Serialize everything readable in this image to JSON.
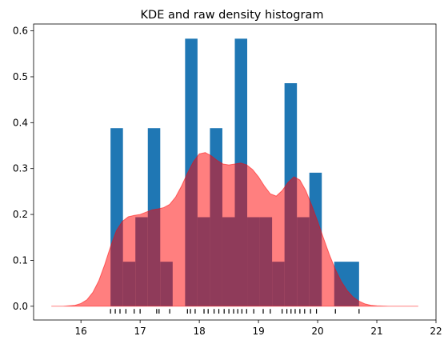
{
  "chart_data": {
    "type": "histogram+kde",
    "title": "KDE and raw density histogram",
    "xlabel": "",
    "ylabel": "",
    "xlim": [
      15.2,
      22.0
    ],
    "ylim": [
      -0.03,
      0.615
    ],
    "x_ticks": [
      16,
      17,
      18,
      19,
      20,
      21,
      22
    ],
    "y_ticks": [
      0.0,
      0.1,
      0.2,
      0.3,
      0.4,
      0.5,
      0.6
    ],
    "x_tick_labels": [
      "16",
      "17",
      "18",
      "19",
      "20",
      "21",
      "22"
    ],
    "y_tick_labels": [
      "0.0",
      "0.1",
      "0.2",
      "0.3",
      "0.4",
      "0.5",
      "0.6"
    ],
    "grid": false,
    "legend": "none",
    "histogram": {
      "color": "#1f77b4",
      "bins": [
        {
          "x0": 16.5,
          "x1": 16.71,
          "density": 0.388
        },
        {
          "x0": 16.71,
          "x1": 16.92,
          "density": 0.097
        },
        {
          "x0": 16.92,
          "x1": 17.13,
          "density": 0.194
        },
        {
          "x0": 17.13,
          "x1": 17.34,
          "density": 0.388
        },
        {
          "x0": 17.34,
          "x1": 17.55,
          "density": 0.097
        },
        {
          "x0": 17.55,
          "x1": 17.76,
          "density": 0.0
        },
        {
          "x0": 17.76,
          "x1": 17.97,
          "density": 0.583
        },
        {
          "x0": 17.97,
          "x1": 18.18,
          "density": 0.194
        },
        {
          "x0": 18.18,
          "x1": 18.39,
          "density": 0.388
        },
        {
          "x0": 18.39,
          "x1": 18.6,
          "density": 0.194
        },
        {
          "x0": 18.6,
          "x1": 18.81,
          "density": 0.583
        },
        {
          "x0": 18.81,
          "x1": 19.02,
          "density": 0.194
        },
        {
          "x0": 19.02,
          "x1": 19.23,
          "density": 0.194
        },
        {
          "x0": 19.23,
          "x1": 19.44,
          "density": 0.097
        },
        {
          "x0": 19.44,
          "x1": 19.65,
          "density": 0.486
        },
        {
          "x0": 19.65,
          "x1": 19.86,
          "density": 0.194
        },
        {
          "x0": 19.86,
          "x1": 20.07,
          "density": 0.291
        },
        {
          "x0": 20.07,
          "x1": 20.28,
          "density": 0.0
        },
        {
          "x0": 20.28,
          "x1": 20.7,
          "density": 0.097
        }
      ]
    },
    "kde": {
      "color": "#ff0000",
      "fill_alpha": 0.5,
      "x": [
        15.5,
        15.7,
        15.9,
        16.0,
        16.1,
        16.2,
        16.3,
        16.4,
        16.5,
        16.6,
        16.7,
        16.8,
        16.9,
        17.0,
        17.1,
        17.2,
        17.3,
        17.4,
        17.5,
        17.6,
        17.7,
        17.8,
        17.9,
        18.0,
        18.1,
        18.2,
        18.3,
        18.4,
        18.5,
        18.6,
        18.7,
        18.8,
        18.9,
        19.0,
        19.1,
        19.2,
        19.3,
        19.4,
        19.5,
        19.6,
        19.7,
        19.8,
        19.9,
        20.0,
        20.1,
        20.2,
        20.3,
        20.4,
        20.5,
        20.6,
        20.7,
        20.8,
        20.9,
        21.0,
        21.2,
        21.4,
        21.7
      ],
      "y": [
        0.0,
        0.0,
        0.002,
        0.006,
        0.014,
        0.03,
        0.055,
        0.09,
        0.13,
        0.165,
        0.185,
        0.195,
        0.198,
        0.2,
        0.205,
        0.21,
        0.212,
        0.215,
        0.222,
        0.238,
        0.262,
        0.29,
        0.315,
        0.332,
        0.335,
        0.328,
        0.318,
        0.31,
        0.308,
        0.31,
        0.312,
        0.308,
        0.298,
        0.282,
        0.262,
        0.245,
        0.24,
        0.252,
        0.27,
        0.282,
        0.275,
        0.252,
        0.22,
        0.185,
        0.148,
        0.112,
        0.08,
        0.054,
        0.034,
        0.02,
        0.011,
        0.005,
        0.002,
        0.001,
        0.0,
        0.0,
        0.0
      ]
    },
    "rug": {
      "color": "#000000",
      "values": [
        16.5,
        16.58,
        16.66,
        16.76,
        16.9,
        17.0,
        17.28,
        17.32,
        17.5,
        17.8,
        17.85,
        17.93,
        18.08,
        18.15,
        18.25,
        18.33,
        18.42,
        18.5,
        18.58,
        18.65,
        18.72,
        18.8,
        18.92,
        19.08,
        19.2,
        19.4,
        19.48,
        19.55,
        19.62,
        19.7,
        19.78,
        19.88,
        19.98,
        20.3,
        20.7
      ]
    }
  }
}
